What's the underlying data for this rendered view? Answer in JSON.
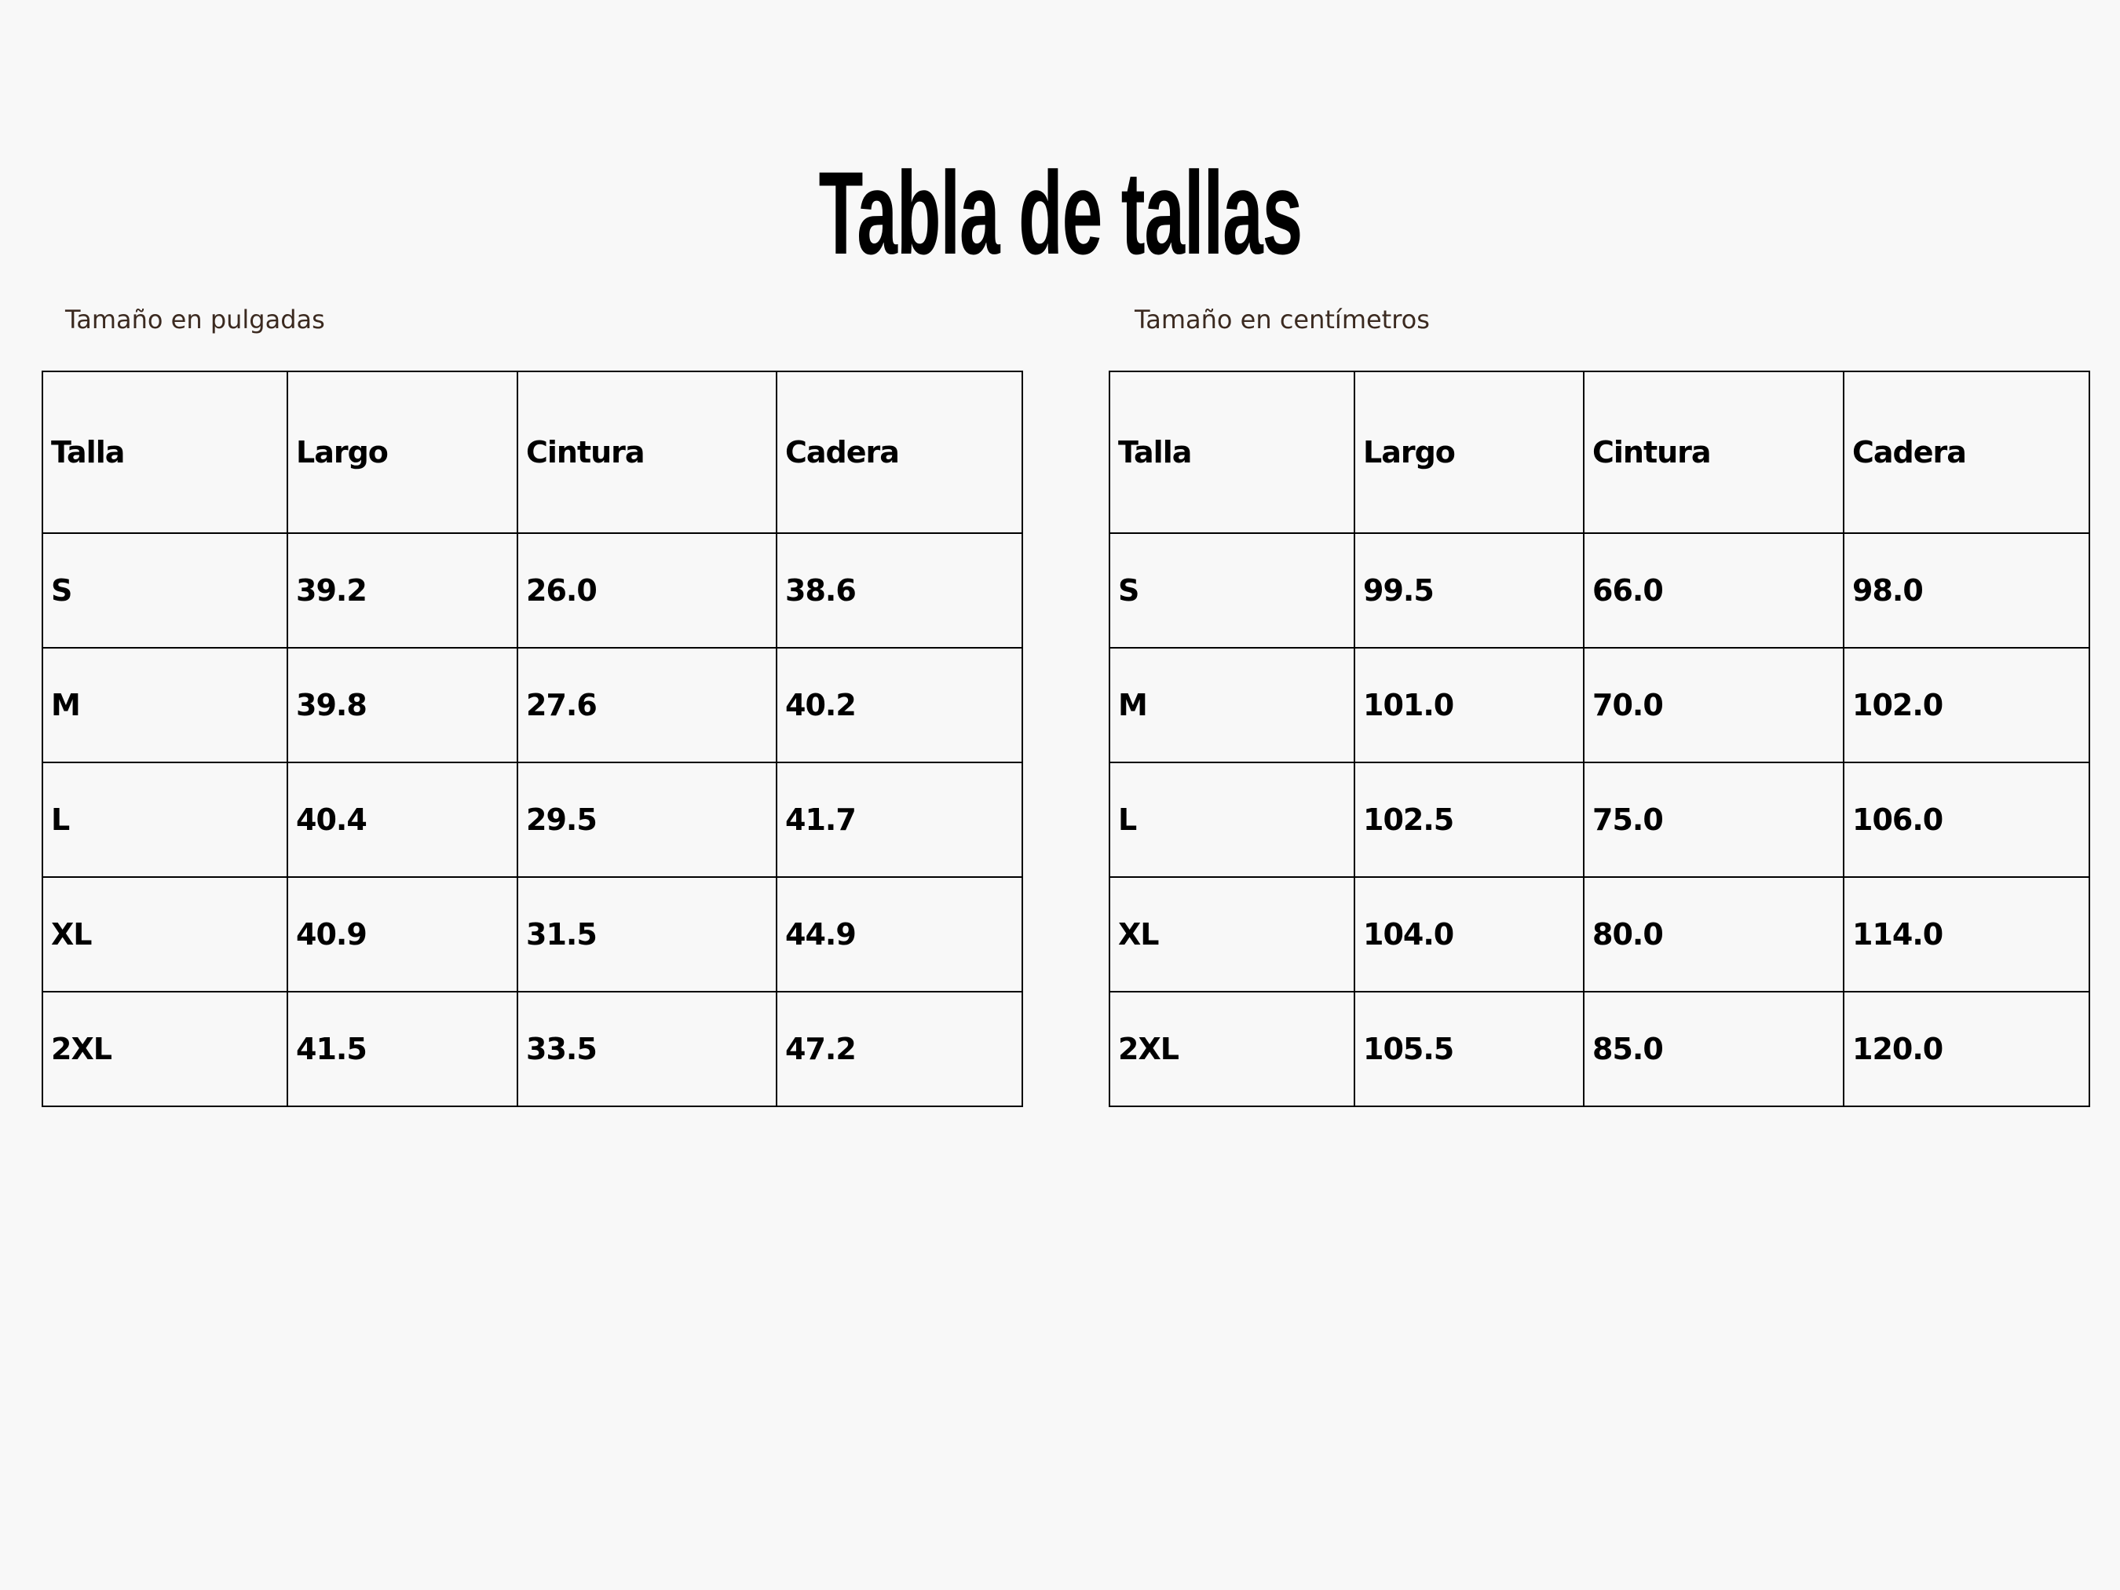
{
  "title": "Tabla de tallas",
  "inches": {
    "caption": "Tamaño en pulgadas",
    "headers": [
      "Talla",
      "Largo",
      "Cintura",
      "Cadera"
    ],
    "rows": [
      [
        "S",
        "39.2",
        "26.0",
        "38.6"
      ],
      [
        "M",
        "39.8",
        "27.6",
        "40.2"
      ],
      [
        "L",
        "40.4",
        "29.5",
        "41.7"
      ],
      [
        "XL",
        "40.9",
        "31.5",
        "44.9"
      ],
      [
        "2XL",
        "41.5",
        "33.5",
        "47.2"
      ]
    ]
  },
  "cm": {
    "caption": "Tamaño en centímetros",
    "headers": [
      "Talla",
      "Largo",
      "Cintura",
      "Cadera"
    ],
    "rows": [
      [
        "S",
        "99.5",
        "66.0",
        "98.0"
      ],
      [
        "M",
        "101.0",
        "70.0",
        "102.0"
      ],
      [
        "L",
        "102.5",
        "75.0",
        "106.0"
      ],
      [
        "XL",
        "104.0",
        "80.0",
        "114.0"
      ],
      [
        "2XL",
        "105.5",
        "85.0",
        "120.0"
      ]
    ]
  },
  "colors": {
    "background": "#f8f8f8",
    "text": "#000000",
    "caption": "#3b2a20"
  }
}
